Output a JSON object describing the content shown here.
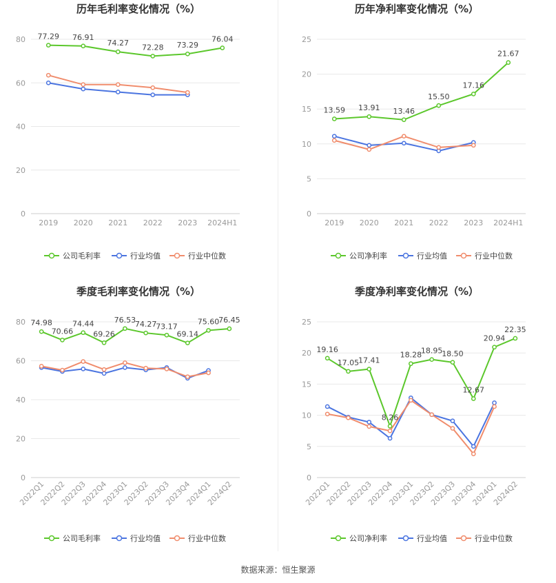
{
  "source": "数据来源：恒生聚源",
  "legend": {
    "industry_avg": "行业均值",
    "industry_median": "行业中位数"
  },
  "colors": {
    "company": "#5bc72b",
    "industry_avg": "#4a74e0",
    "industry_median": "#f08c6c"
  },
  "chart_data": [
    {
      "type": "line",
      "title": "历年毛利率变化情况（%）",
      "categories": [
        "2019",
        "2020",
        "2021",
        "2022",
        "2023",
        "2024H1"
      ],
      "ylim": [
        0,
        80
      ],
      "yticks": [
        0,
        20,
        40,
        60,
        80
      ],
      "legend_position": "bottom",
      "series": [
        {
          "name": "公司毛利率",
          "key": "company",
          "values": [
            77.29,
            76.91,
            74.27,
            72.28,
            73.29,
            76.04
          ],
          "labels": true
        },
        {
          "name": "行业均值",
          "key": "industry_avg",
          "values": [
            60.0,
            57.2,
            55.8,
            54.5,
            54.5,
            null
          ],
          "labels": false
        },
        {
          "name": "行业中位数",
          "key": "industry_median",
          "values": [
            63.5,
            59.2,
            59.2,
            57.8,
            55.6,
            null
          ],
          "labels": false
        }
      ]
    },
    {
      "type": "line",
      "title": "历年净利率变化情况（%）",
      "categories": [
        "2019",
        "2020",
        "2021",
        "2022",
        "2023",
        "2024H1"
      ],
      "ylim": [
        0,
        25
      ],
      "yticks": [
        0,
        5,
        10,
        15,
        20,
        25
      ],
      "legend_position": "bottom",
      "series": [
        {
          "name": "公司净利率",
          "key": "company",
          "values": [
            13.59,
            13.91,
            13.46,
            15.5,
            17.16,
            21.67
          ],
          "labels": true
        },
        {
          "name": "行业均值",
          "key": "industry_avg",
          "values": [
            11.1,
            9.8,
            10.1,
            9.0,
            10.2,
            null
          ],
          "labels": false
        },
        {
          "name": "行业中位数",
          "key": "industry_median",
          "values": [
            10.5,
            9.2,
            11.1,
            9.5,
            9.8,
            null
          ],
          "labels": false
        }
      ]
    },
    {
      "type": "line",
      "title": "季度毛利率变化情况（%）",
      "categories": [
        "2022Q1",
        "2022Q2",
        "2022Q3",
        "2022Q4",
        "2023Q1",
        "2023Q2",
        "2023Q3",
        "2023Q4",
        "2024Q1",
        "2024Q2"
      ],
      "ylim": [
        0,
        80
      ],
      "yticks": [
        0,
        20,
        40,
        60,
        80
      ],
      "legend_position": "bottom",
      "series": [
        {
          "name": "公司毛利率",
          "key": "company",
          "values": [
            74.98,
            70.66,
            74.44,
            69.26,
            76.53,
            74.27,
            73.17,
            69.14,
            75.6,
            76.45
          ],
          "labels": true
        },
        {
          "name": "行业均值",
          "key": "industry_avg",
          "values": [
            56.5,
            54.5,
            55.8,
            53.5,
            56.5,
            55.3,
            56.5,
            51.0,
            55.0,
            null
          ],
          "labels": false
        },
        {
          "name": "行业中位数",
          "key": "industry_median",
          "values": [
            57.2,
            55.2,
            59.6,
            55.5,
            59.0,
            56.2,
            55.8,
            51.8,
            53.8,
            null
          ],
          "labels": false
        }
      ]
    },
    {
      "type": "line",
      "title": "季度净利率变化情况（%）",
      "categories": [
        "2022Q1",
        "2022Q2",
        "2022Q3",
        "2022Q4",
        "2023Q1",
        "2023Q2",
        "2023Q3",
        "2023Q4",
        "2024Q1",
        "2024Q2"
      ],
      "ylim": [
        0,
        25
      ],
      "yticks": [
        0,
        5,
        10,
        15,
        20,
        25
      ],
      "legend_position": "bottom",
      "series": [
        {
          "name": "公司净利率",
          "key": "company",
          "values": [
            19.16,
            17.05,
            17.41,
            8.26,
            18.28,
            18.95,
            18.5,
            12.67,
            20.94,
            22.35
          ],
          "labels": true
        },
        {
          "name": "行业均值",
          "key": "industry_avg",
          "values": [
            11.4,
            9.7,
            8.9,
            6.3,
            12.8,
            10.1,
            9.1,
            5.0,
            12.0,
            null
          ],
          "labels": false
        },
        {
          "name": "行业中位数",
          "key": "industry_median",
          "values": [
            10.2,
            9.6,
            8.2,
            7.5,
            12.4,
            10.1,
            7.9,
            3.8,
            11.4,
            null
          ],
          "labels": false
        }
      ]
    }
  ]
}
